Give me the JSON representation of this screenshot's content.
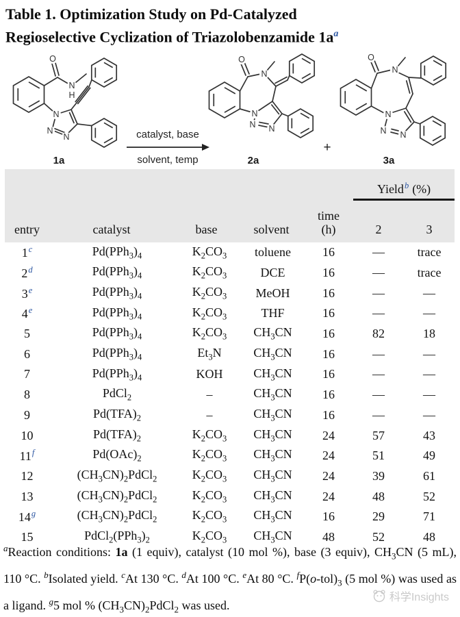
{
  "title": {
    "line1": "Table 1. Optimization Study on Pd-Catalyzed",
    "line2": "Regioselective Cyclization of Triazolobenzamide 1a",
    "sup": "a"
  },
  "scheme": {
    "conditions_top": "catalyst, base",
    "conditions_bottom": "solvent, temp",
    "plus": "+",
    "molecules": {
      "m1a": {
        "label": "1a",
        "atoms": {
          "o": "O",
          "n_amide": "N",
          "h_amide": "H",
          "n1": "N",
          "n2": "N",
          "n3": "N"
        }
      },
      "m2a": {
        "label": "2a",
        "atoms": {
          "o": "O",
          "n_amide": "N",
          "n1": "N",
          "n2": "N",
          "n3": "N"
        }
      },
      "m3a": {
        "label": "3a",
        "atoms": {
          "o": "O",
          "n_amide": "N",
          "n1": "N",
          "n2": "N",
          "n3": "N"
        }
      }
    }
  },
  "table": {
    "header": {
      "yield_label": "Yield",
      "yield_sup": "b",
      "yield_unit": "(%)",
      "col_entry": "entry",
      "col_catalyst": "catalyst",
      "col_base": "base",
      "col_solvent": "solvent",
      "col_time_1": "time",
      "col_time_2": "(h)",
      "col_2": "2",
      "col_3": "3"
    },
    "rows": [
      {
        "entry": "1",
        "sup": "c",
        "catalyst": "Pd(PPh{3}){4}",
        "base": "K{2}CO{3}",
        "solvent": "toluene",
        "time": "16",
        "y2": "—",
        "y3": "trace"
      },
      {
        "entry": "2",
        "sup": "d",
        "catalyst": "Pd(PPh{3}){4}",
        "base": "K{2}CO{3}",
        "solvent": "DCE",
        "time": "16",
        "y2": "—",
        "y3": "trace"
      },
      {
        "entry": "3",
        "sup": "e",
        "catalyst": "Pd(PPh{3}){4}",
        "base": "K{2}CO{3}",
        "solvent": "MeOH",
        "time": "16",
        "y2": "—",
        "y3": "—"
      },
      {
        "entry": "4",
        "sup": "e",
        "catalyst": "Pd(PPh{3}){4}",
        "base": "K{2}CO{3}",
        "solvent": "THF",
        "time": "16",
        "y2": "—",
        "y3": "—"
      },
      {
        "entry": "5",
        "sup": "",
        "catalyst": "Pd(PPh{3}){4}",
        "base": "K{2}CO{3}",
        "solvent": "CH{3}CN",
        "time": "16",
        "y2": "82",
        "y3": "18"
      },
      {
        "entry": "6",
        "sup": "",
        "catalyst": "Pd(PPh{3}){4}",
        "base": "Et{3}N",
        "solvent": "CH{3}CN",
        "time": "16",
        "y2": "—",
        "y3": "—"
      },
      {
        "entry": "7",
        "sup": "",
        "catalyst": "Pd(PPh{3}){4}",
        "base": "KOH",
        "solvent": "CH{3}CN",
        "time": "16",
        "y2": "—",
        "y3": "—"
      },
      {
        "entry": "8",
        "sup": "",
        "catalyst": "PdCl{2}",
        "base": "–",
        "solvent": "CH{3}CN",
        "time": "16",
        "y2": "—",
        "y3": "—"
      },
      {
        "entry": "9",
        "sup": "",
        "catalyst": "Pd(TFA){2}",
        "base": "–",
        "solvent": "CH{3}CN",
        "time": "16",
        "y2": "—",
        "y3": "—"
      },
      {
        "entry": "10",
        "sup": "",
        "catalyst": "Pd(TFA){2}",
        "base": "K{2}CO{3}",
        "solvent": "CH{3}CN",
        "time": "24",
        "y2": "57",
        "y3": "43"
      },
      {
        "entry": "11",
        "sup": "f",
        "catalyst": "Pd(OAc){2}",
        "base": "K{2}CO{3}",
        "solvent": "CH{3}CN",
        "time": "24",
        "y2": "51",
        "y3": "49"
      },
      {
        "entry": "12",
        "sup": "",
        "catalyst": "(CH{3}CN){2}PdCl{2}",
        "base": "K{2}CO{3}",
        "solvent": "CH{3}CN",
        "time": "24",
        "y2": "39",
        "y3": "61"
      },
      {
        "entry": "13",
        "sup": "",
        "catalyst": "(CH{3}CN){2}PdCl{2}",
        "base": "K{2}CO{3}",
        "solvent": "CH{3}CN",
        "time": "24",
        "y2": "48",
        "y3": "52"
      },
      {
        "entry": "14",
        "sup": "g",
        "catalyst": "(CH{3}CN){2}PdCl{2}",
        "base": "K{2}CO{3}",
        "solvent": "CH{3}CN",
        "time": "16",
        "y2": "29",
        "y3": "71"
      },
      {
        "entry": "15",
        "sup": "",
        "catalyst": "PdCl{2}(PPh{3}){2}",
        "base": "K{2}CO{3}",
        "solvent": "CH{3}CN",
        "time": "48",
        "y2": "52",
        "y3": "48"
      }
    ]
  },
  "footnote": {
    "text": "^{a}Reaction conditions: *1a* (1 equiv), catalyst (10 mol %), base (3 equiv), CH{3}CN (5 mL), 110 °C. ^{b}Isolated yield. ^{c}At 130 °C. ^{d}At 100 °C. ^{e}At 80 °C. ^{f}P(_o_-tol){3} (5 mol %) was used as a ligand. ^{g}5 mol % (CH{3}CN){2}PdCl{2} was used."
  },
  "watermark": {
    "text": "科学Insights"
  },
  "colors": {
    "accent_blue": "#2b55a1",
    "header_gray": "#e7e7e7",
    "watermark_gray": "#c9c9c9"
  }
}
